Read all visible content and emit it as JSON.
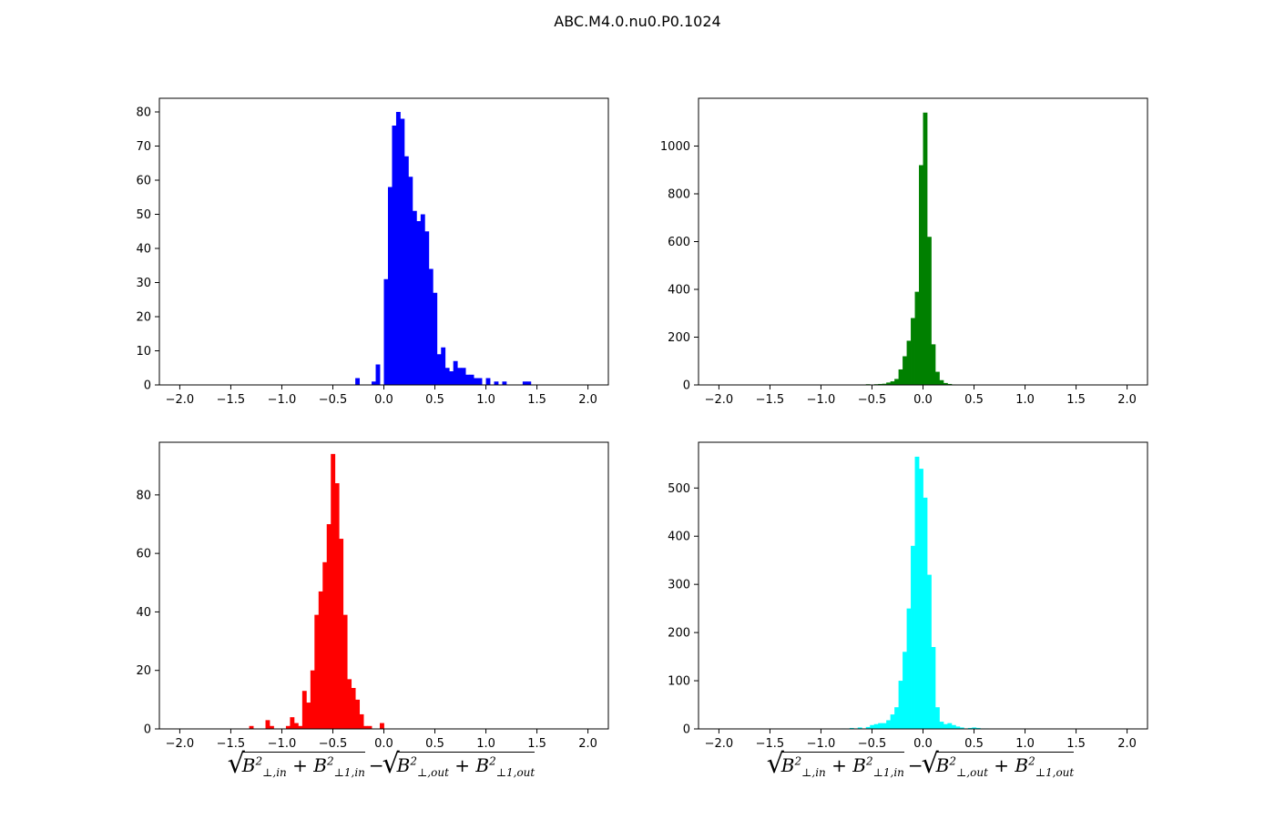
{
  "title": "ABC.M4.0.nu0.P0.1024",
  "chart_data": [
    {
      "type": "bar",
      "title": "",
      "xlabel": "",
      "ylabel": "",
      "color": "#0000ff",
      "xlim": [
        -2.2,
        2.2
      ],
      "ylim": [
        0,
        84
      ],
      "xticks": [
        -2.0,
        -1.5,
        -1.0,
        -0.5,
        0.0,
        0.5,
        1.0,
        1.5,
        2.0
      ],
      "yticks": [
        0,
        10,
        20,
        30,
        40,
        50,
        60,
        70,
        80
      ],
      "bin_width": 0.04,
      "bins": [
        [
          -0.28,
          2
        ],
        [
          -0.12,
          1
        ],
        [
          -0.08,
          6
        ],
        [
          0.0,
          31
        ],
        [
          0.04,
          58
        ],
        [
          0.08,
          76
        ],
        [
          0.12,
          80
        ],
        [
          0.16,
          78
        ],
        [
          0.2,
          67
        ],
        [
          0.24,
          61
        ],
        [
          0.28,
          51
        ],
        [
          0.32,
          48
        ],
        [
          0.36,
          50
        ],
        [
          0.4,
          45
        ],
        [
          0.44,
          34
        ],
        [
          0.48,
          27
        ],
        [
          0.52,
          9
        ],
        [
          0.56,
          11
        ],
        [
          0.6,
          5
        ],
        [
          0.64,
          4
        ],
        [
          0.68,
          7
        ],
        [
          0.72,
          5
        ],
        [
          0.76,
          5
        ],
        [
          0.8,
          3
        ],
        [
          0.84,
          3
        ],
        [
          0.88,
          2
        ],
        [
          0.92,
          2
        ],
        [
          1.0,
          2
        ],
        [
          1.08,
          1
        ],
        [
          1.16,
          1
        ],
        [
          1.36,
          1
        ],
        [
          1.4,
          1
        ]
      ]
    },
    {
      "type": "bar",
      "title": "",
      "xlabel": "",
      "ylabel": "",
      "color": "#008000",
      "xlim": [
        -2.2,
        2.2
      ],
      "ylim": [
        0,
        1200
      ],
      "xticks": [
        -2.0,
        -1.5,
        -1.0,
        -0.5,
        0.0,
        0.5,
        1.0,
        1.5,
        2.0
      ],
      "yticks": [
        0,
        200,
        400,
        600,
        800,
        1000
      ],
      "bin_width": 0.04,
      "bins": [
        [
          -0.56,
          3
        ],
        [
          -0.48,
          3
        ],
        [
          -0.44,
          4
        ],
        [
          -0.4,
          5
        ],
        [
          -0.36,
          10
        ],
        [
          -0.32,
          15
        ],
        [
          -0.28,
          25
        ],
        [
          -0.24,
          65
        ],
        [
          -0.2,
          120
        ],
        [
          -0.16,
          185
        ],
        [
          -0.12,
          280
        ],
        [
          -0.08,
          390
        ],
        [
          -0.04,
          920
        ],
        [
          0.0,
          1140
        ],
        [
          0.04,
          620
        ],
        [
          0.08,
          170
        ],
        [
          0.12,
          55
        ],
        [
          0.16,
          20
        ],
        [
          0.2,
          8
        ],
        [
          0.24,
          4
        ],
        [
          0.28,
          2
        ]
      ]
    },
    {
      "type": "bar",
      "title": "",
      "xlabel": "sqrt(B⊥,in² + B⊥1,in²) − sqrt(B⊥,out² + B⊥1,out²)",
      "ylabel": "",
      "color": "#ff0000",
      "xlim": [
        -2.2,
        2.2
      ],
      "ylim": [
        0,
        98
      ],
      "xticks": [
        -2.0,
        -1.5,
        -1.0,
        -0.5,
        0.0,
        0.5,
        1.0,
        1.5,
        2.0
      ],
      "yticks": [
        0,
        20,
        40,
        60,
        80
      ],
      "bin_width": 0.04,
      "bins": [
        [
          -1.32,
          1
        ],
        [
          -1.16,
          3
        ],
        [
          -1.12,
          1
        ],
        [
          -0.96,
          1
        ],
        [
          -0.92,
          4
        ],
        [
          -0.88,
          2
        ],
        [
          -0.84,
          1
        ],
        [
          -0.8,
          13
        ],
        [
          -0.76,
          9
        ],
        [
          -0.72,
          20
        ],
        [
          -0.68,
          39
        ],
        [
          -0.64,
          47
        ],
        [
          -0.6,
          57
        ],
        [
          -0.56,
          70
        ],
        [
          -0.52,
          94
        ],
        [
          -0.48,
          84
        ],
        [
          -0.44,
          65
        ],
        [
          -0.4,
          39
        ],
        [
          -0.36,
          17
        ],
        [
          -0.32,
          14
        ],
        [
          -0.28,
          10
        ],
        [
          -0.24,
          5
        ],
        [
          -0.2,
          1
        ],
        [
          -0.16,
          1
        ],
        [
          -0.04,
          2
        ]
      ]
    },
    {
      "type": "bar",
      "title": "",
      "xlabel": "sqrt(B⊥,in² + B⊥1,in²) − sqrt(B⊥,out² + B⊥1,out²)",
      "ylabel": "",
      "color": "#00ffff",
      "xlim": [
        -2.2,
        2.2
      ],
      "ylim": [
        0,
        595
      ],
      "xticks": [
        -2.0,
        -1.5,
        -1.0,
        -0.5,
        0.0,
        0.5,
        1.0,
        1.5,
        2.0
      ],
      "yticks": [
        0,
        100,
        200,
        300,
        400,
        500
      ],
      "bin_width": 0.04,
      "bins": [
        [
          -0.8,
          1
        ],
        [
          -0.72,
          2
        ],
        [
          -0.64,
          3
        ],
        [
          -0.56,
          4
        ],
        [
          -0.52,
          8
        ],
        [
          -0.48,
          10
        ],
        [
          -0.44,
          12
        ],
        [
          -0.4,
          12
        ],
        [
          -0.36,
          18
        ],
        [
          -0.32,
          30
        ],
        [
          -0.28,
          45
        ],
        [
          -0.24,
          100
        ],
        [
          -0.2,
          160
        ],
        [
          -0.16,
          250
        ],
        [
          -0.12,
          380
        ],
        [
          -0.08,
          565
        ],
        [
          -0.04,
          540
        ],
        [
          0.0,
          480
        ],
        [
          0.04,
          320
        ],
        [
          0.08,
          170
        ],
        [
          0.12,
          45
        ],
        [
          0.16,
          15
        ],
        [
          0.2,
          10
        ],
        [
          0.24,
          12
        ],
        [
          0.28,
          8
        ],
        [
          0.32,
          5
        ],
        [
          0.36,
          3
        ],
        [
          0.44,
          2
        ],
        [
          0.48,
          3
        ],
        [
          0.52,
          2
        ],
        [
          0.56,
          1
        ],
        [
          0.6,
          1
        ]
      ]
    }
  ]
}
